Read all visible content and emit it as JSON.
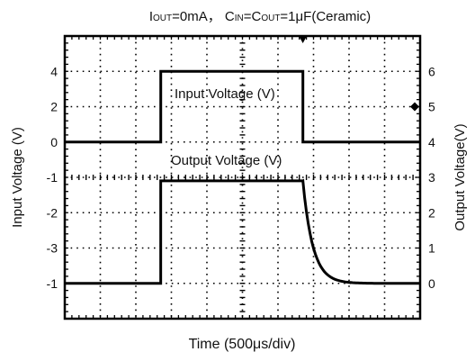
{
  "chart_data": {
    "type": "line",
    "title": "Iᴏᴜᴛ=0mA， Cɪɴ=Cᴏᴜᴛ=1μF(Ceramic)",
    "title_parts": [
      "I",
      "OUT",
      "=0mA， C",
      "IN",
      "=C",
      "OUT",
      "=1μF(Ceramic)"
    ],
    "xlabel": "Time (500μs/div)",
    "ylabel_left": "Input Voltage (V)",
    "ylabel_right": "Output Voltage(V)",
    "divisions": {
      "x": 10,
      "y": 8
    },
    "grid": "dotted",
    "left_ticks": [
      {
        "label": "4",
        "div": 1
      },
      {
        "label": "2",
        "div": 2
      },
      {
        "label": "0",
        "div": 3
      },
      {
        "label": "-1",
        "div": 4
      },
      {
        "label": "-2",
        "div": 5
      },
      {
        "label": "-3",
        "div": 6
      },
      {
        "label": "-1",
        "div": 7
      }
    ],
    "right_ticks": [
      {
        "label": "6",
        "div": 1
      },
      {
        "label": "5",
        "div": 2
      },
      {
        "label": "4",
        "div": 3
      },
      {
        "label": "3",
        "div": 4
      },
      {
        "label": "2",
        "div": 5
      },
      {
        "label": "1",
        "div": 6
      },
      {
        "label": "0",
        "div": 7
      }
    ],
    "series": [
      {
        "name": "Input Voltage (V)",
        "axis": "left",
        "points_div": [
          [
            0,
            3
          ],
          [
            2.7,
            3
          ],
          [
            2.7,
            1
          ],
          [
            6.7,
            1
          ],
          [
            6.7,
            3
          ],
          [
            10,
            3
          ]
        ]
      },
      {
        "name": "Output Voltage (V)",
        "axis": "right",
        "type": "rc_decay",
        "high_div": 4.1,
        "low_div": 7,
        "rise_div": 2.7,
        "fall_div": 6.7,
        "tau_div": 0.28
      }
    ],
    "markers": [
      {
        "name": "trigger-marker",
        "shape": "triangle-down",
        "edge": "top",
        "div": 6.7
      },
      {
        "name": "level-marker",
        "shape": "diamond",
        "edge": "right",
        "div": 2
      }
    ]
  }
}
